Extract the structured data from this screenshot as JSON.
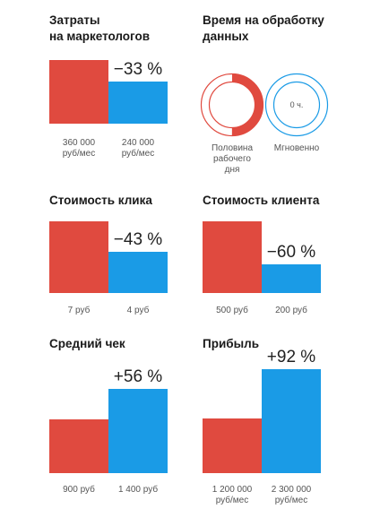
{
  "colors": {
    "before": "#e04a3f",
    "after": "#1a9be6"
  },
  "chart_data": [
    {
      "type": "bar",
      "title": [
        "Затраты",
        "на маркетологов"
      ],
      "categories": [
        "360 000 руб/мес",
        "240 000 руб/мес"
      ],
      "category_lines": [
        [
          "360 000",
          "руб/мес"
        ],
        [
          "240 000",
          "руб/мес"
        ]
      ],
      "values": [
        360000,
        240000
      ],
      "change_label": "−33 %",
      "ylim": [
        0,
        360000
      ]
    },
    {
      "type": "pie",
      "title": [
        "Время на обработку",
        "данных"
      ],
      "items": [
        {
          "label_lines": [
            "Половина",
            "рабочего",
            "дня"
          ],
          "fraction": 0.5,
          "center_text": ""
        },
        {
          "label_lines": [
            "Мгновенно"
          ],
          "fraction": 0,
          "center_text": "0 ч."
        }
      ]
    },
    {
      "type": "bar",
      "title": [
        "Стоимость клика"
      ],
      "categories": [
        "7 руб",
        "4 руб"
      ],
      "category_lines": [
        [
          "7 руб"
        ],
        [
          "4 руб"
        ]
      ],
      "values": [
        7,
        4
      ],
      "change_label": "−43 %",
      "ylim": [
        0,
        7
      ]
    },
    {
      "type": "bar",
      "title": [
        "Стоимость клиента"
      ],
      "categories": [
        "500 руб",
        "200 руб"
      ],
      "category_lines": [
        [
          "500 руб"
        ],
        [
          "200 руб"
        ]
      ],
      "values": [
        500,
        200
      ],
      "change_label": "−60 %",
      "ylim": [
        0,
        500
      ]
    },
    {
      "type": "bar",
      "title": [
        "Средний чек"
      ],
      "categories": [
        "900 руб",
        "1 400 руб"
      ],
      "category_lines": [
        [
          "900 руб"
        ],
        [
          "1 400 руб"
        ]
      ],
      "values": [
        900,
        1400
      ],
      "change_label": "+56 %",
      "ylim": [
        0,
        1400
      ]
    },
    {
      "type": "bar",
      "title": [
        "Прибыль"
      ],
      "categories": [
        "1 200 000 руб/мес",
        "2 300 000 руб/мес"
      ],
      "category_lines": [
        [
          "1 200 000",
          "руб/мес"
        ],
        [
          "2 300 000",
          "руб/мес"
        ]
      ],
      "values": [
        1200000,
        2300000
      ],
      "change_label": "+92 %",
      "ylim": [
        0,
        2300000
      ]
    }
  ]
}
